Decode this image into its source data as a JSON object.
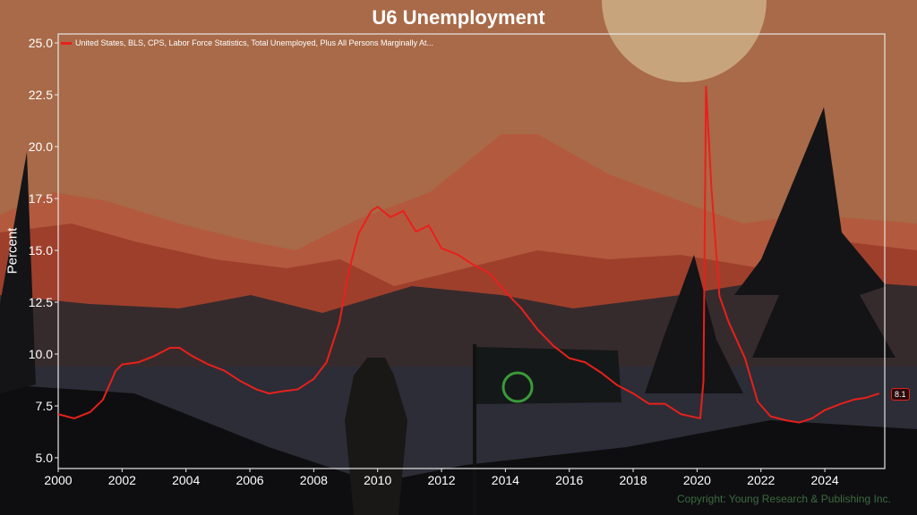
{
  "chart_data": {
    "type": "line",
    "title": "U6 Unemployment",
    "xlabel": "",
    "ylabel": "Percent",
    "xlim": [
      2000,
      2025.9
    ],
    "ylim": [
      4.5,
      25.5
    ],
    "grid": false,
    "legend_position": "top-left",
    "x_ticks": [
      "2000",
      "2002",
      "2004",
      "2006",
      "2008",
      "2010",
      "2012",
      "2014",
      "2016",
      "2018",
      "2020",
      "2022",
      "2024"
    ],
    "y_ticks": [
      "5.0",
      "7.5",
      "10.0",
      "12.5",
      "15.0",
      "17.5",
      "20.0",
      "22.5",
      "25.0"
    ],
    "series": [
      {
        "name": "United States, BLS, CPS, Labor Force Statistics, Total Unemployed, Plus All Persons Marginally At...",
        "color": "#e8201c",
        "points": [
          [
            2000,
            7.1
          ],
          [
            2000.5,
            6.9
          ],
          [
            2001,
            7.2
          ],
          [
            2001.4,
            7.8
          ],
          [
            2001.8,
            9.2
          ],
          [
            2002,
            9.5
          ],
          [
            2002.5,
            9.6
          ],
          [
            2003,
            9.9
          ],
          [
            2003.5,
            10.3
          ],
          [
            2003.8,
            10.3
          ],
          [
            2004.2,
            9.9
          ],
          [
            2004.7,
            9.5
          ],
          [
            2005.2,
            9.2
          ],
          [
            2005.7,
            8.7
          ],
          [
            2006.2,
            8.3
          ],
          [
            2006.6,
            8.1
          ],
          [
            2007,
            8.2
          ],
          [
            2007.5,
            8.3
          ],
          [
            2008,
            8.8
          ],
          [
            2008.4,
            9.6
          ],
          [
            2008.8,
            11.5
          ],
          [
            2009.1,
            14.0
          ],
          [
            2009.4,
            15.8
          ],
          [
            2009.8,
            16.9
          ],
          [
            2010,
            17.1
          ],
          [
            2010.4,
            16.6
          ],
          [
            2010.8,
            16.9
          ],
          [
            2011.2,
            15.9
          ],
          [
            2011.6,
            16.2
          ],
          [
            2012,
            15.1
          ],
          [
            2012.5,
            14.8
          ],
          [
            2013,
            14.3
          ],
          [
            2013.5,
            13.9
          ],
          [
            2014,
            13.0
          ],
          [
            2014.5,
            12.2
          ],
          [
            2015,
            11.2
          ],
          [
            2015.5,
            10.4
          ],
          [
            2016,
            9.8
          ],
          [
            2016.5,
            9.6
          ],
          [
            2017,
            9.1
          ],
          [
            2017.5,
            8.5
          ],
          [
            2018,
            8.1
          ],
          [
            2018.5,
            7.6
          ],
          [
            2019,
            7.6
          ],
          [
            2019.5,
            7.1
          ],
          [
            2020.1,
            6.9
          ],
          [
            2020.2,
            8.7
          ],
          [
            2020.28,
            22.9
          ],
          [
            2020.45,
            18.0
          ],
          [
            2020.7,
            12.8
          ],
          [
            2021,
            11.5
          ],
          [
            2021.5,
            9.8
          ],
          [
            2021.9,
            7.7
          ],
          [
            2022.3,
            7.0
          ],
          [
            2022.8,
            6.8
          ],
          [
            2023.2,
            6.7
          ],
          [
            2023.6,
            6.9
          ],
          [
            2024,
            7.3
          ],
          [
            2024.5,
            7.6
          ],
          [
            2024.9,
            7.8
          ],
          [
            2025.3,
            7.9
          ],
          [
            2025.7,
            8.1
          ]
        ]
      }
    ],
    "last_value_label": "8.1"
  },
  "copyright": "Copyright: Young Research & Publishing Inc."
}
